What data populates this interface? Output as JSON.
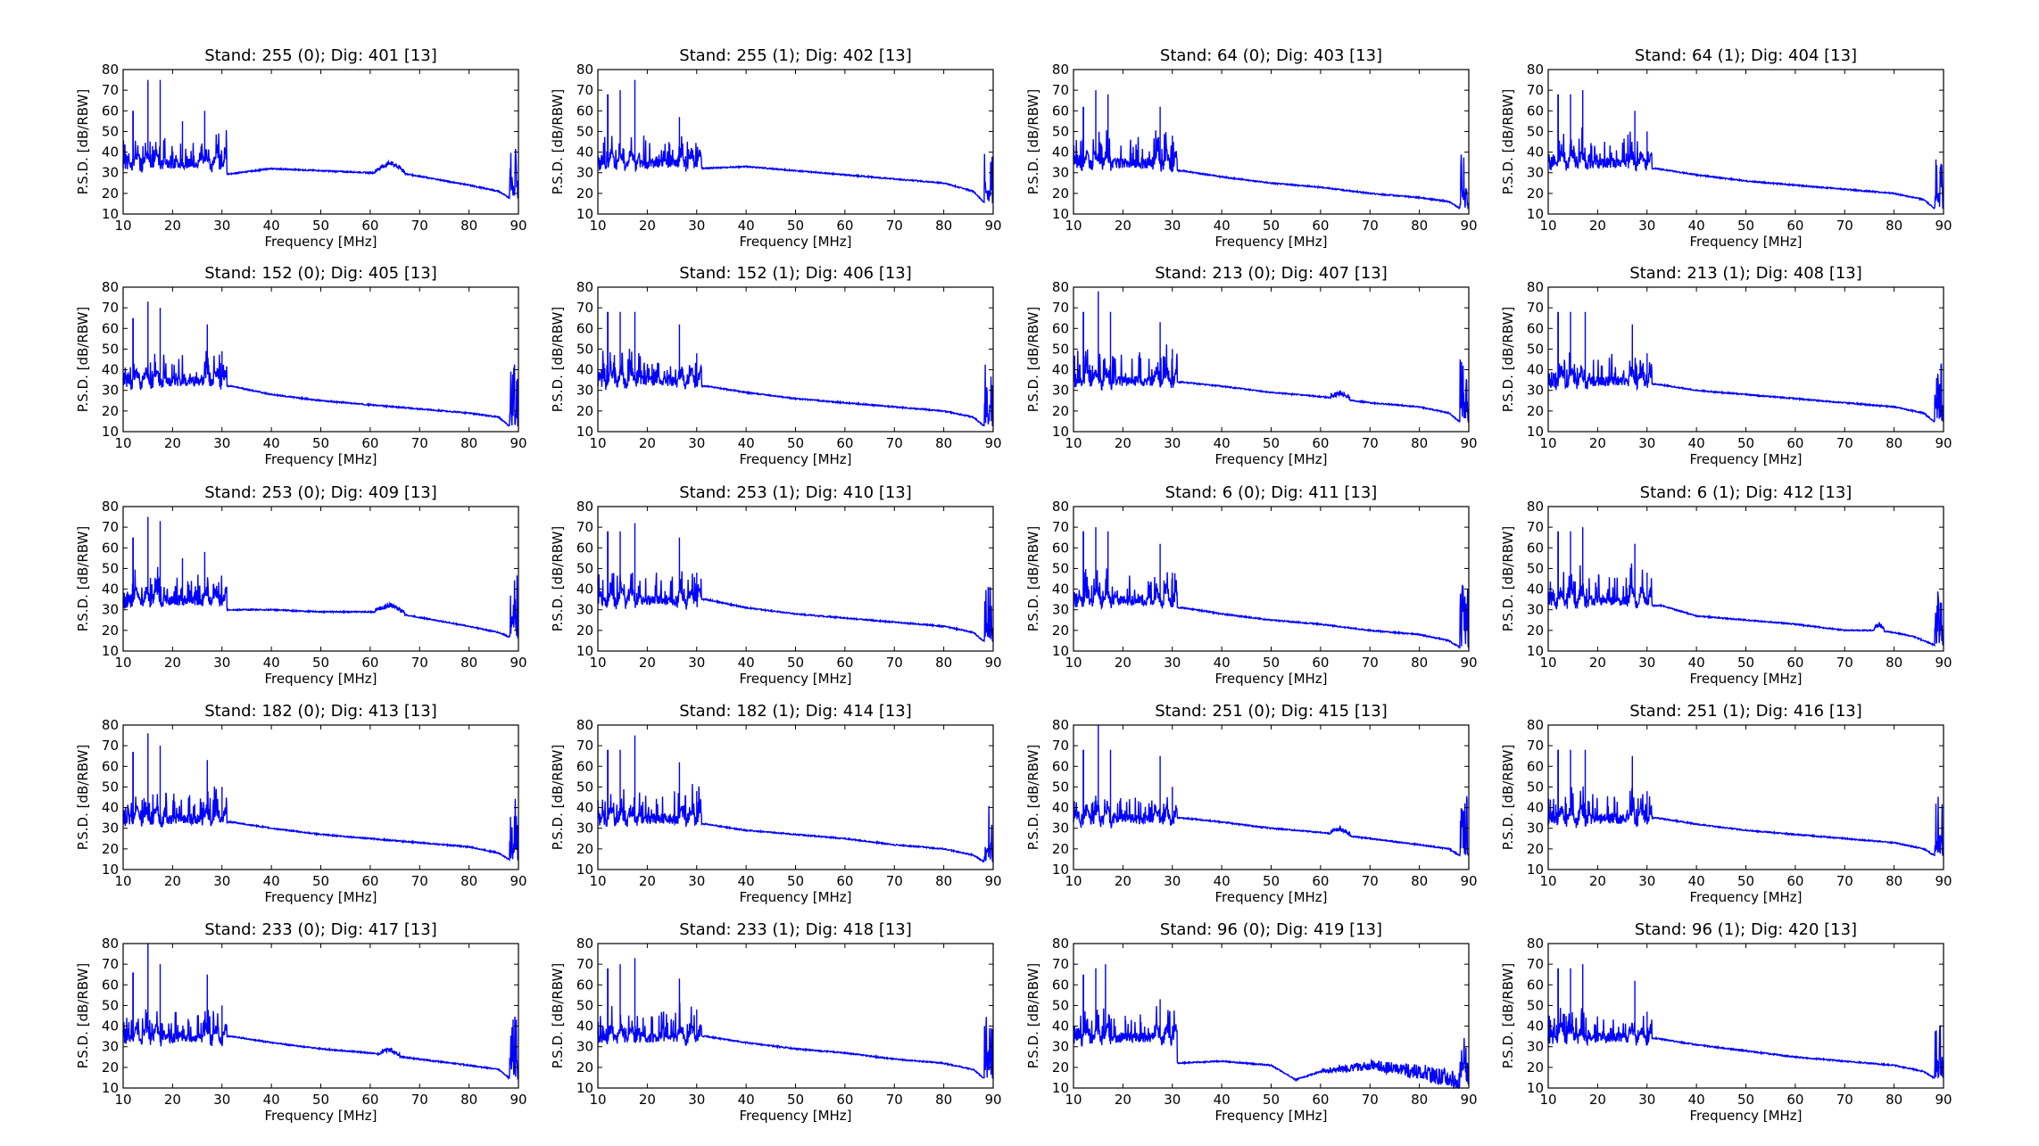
{
  "figure": {
    "rows": 5,
    "cols": 4,
    "xlabel": "Frequency [MHz]",
    "ylabel": "P.S.D. [dB/RBW]",
    "xlim": [
      10,
      90
    ],
    "ylim": [
      10,
      80
    ],
    "xticks": [
      "10",
      "20",
      "30",
      "40",
      "50",
      "60",
      "70",
      "80",
      "90"
    ],
    "yticks": [
      "10",
      "20",
      "30",
      "40",
      "50",
      "60",
      "70",
      "80"
    ],
    "line_color": "#0000ff"
  },
  "chart_data": [
    {
      "type": "line",
      "title": "Stand: 255 (0); Dig: 401 [13]",
      "baseline": "mid",
      "mid": [
        [
          30,
          29
        ],
        [
          40,
          32
        ],
        [
          50,
          31
        ],
        [
          60,
          30
        ],
        [
          66,
          30
        ],
        [
          80,
          24
        ],
        [
          86,
          21
        ],
        [
          88,
          18
        ]
      ],
      "hump": {
        "center": 64,
        "width": 3,
        "height": 4
      },
      "peaks": [
        [
          12,
          60
        ],
        [
          15,
          75
        ],
        [
          17.5,
          75
        ],
        [
          22,
          55
        ],
        [
          26.5,
          60
        ]
      ],
      "edge": 47,
      "xlim": [
        10,
        90
      ],
      "ylim": [
        10,
        80
      ]
    },
    {
      "type": "line",
      "title": "Stand: 255 (1); Dig: 402 [13]",
      "baseline": "mid",
      "mid": [
        [
          30,
          32
        ],
        [
          40,
          33
        ],
        [
          50,
          31
        ],
        [
          60,
          29
        ],
        [
          70,
          27
        ],
        [
          80,
          25
        ],
        [
          86,
          21
        ],
        [
          88,
          16
        ]
      ],
      "peaks": [
        [
          12,
          68
        ],
        [
          14.5,
          70
        ],
        [
          17.5,
          75
        ],
        [
          26.5,
          57
        ]
      ],
      "edge": 44,
      "xlim": [
        10,
        90
      ],
      "ylim": [
        10,
        80
      ]
    },
    {
      "type": "line",
      "title": "Stand: 64 (0); Dig: 403 [13]",
      "baseline": "mid",
      "mid": [
        [
          32,
          31
        ],
        [
          40,
          28
        ],
        [
          50,
          25
        ],
        [
          60,
          23
        ],
        [
          70,
          20
        ],
        [
          80,
          18
        ],
        [
          86,
          16
        ],
        [
          88,
          13
        ]
      ],
      "peaks": [
        [
          12,
          62
        ],
        [
          14.5,
          70
        ],
        [
          17,
          68
        ],
        [
          27.5,
          62
        ],
        [
          30,
          48
        ]
      ],
      "edge": 41,
      "xlim": [
        10,
        90
      ],
      "ylim": [
        10,
        80
      ]
    },
    {
      "type": "line",
      "title": "Stand: 64 (1); Dig: 404 [13]",
      "baseline": "mid",
      "mid": [
        [
          32,
          32
        ],
        [
          40,
          29
        ],
        [
          50,
          26
        ],
        [
          60,
          24
        ],
        [
          70,
          22
        ],
        [
          80,
          20
        ],
        [
          86,
          17
        ],
        [
          88,
          13
        ]
      ],
      "peaks": [
        [
          12,
          68
        ],
        [
          14.5,
          68
        ],
        [
          17,
          70
        ],
        [
          27.5,
          60
        ],
        [
          30,
          50
        ]
      ],
      "edge": 39,
      "xlim": [
        10,
        90
      ],
      "ylim": [
        10,
        80
      ]
    },
    {
      "type": "line",
      "title": "Stand: 152 (0); Dig: 405 [13]",
      "baseline": "mid",
      "mid": [
        [
          32,
          32
        ],
        [
          40,
          28
        ],
        [
          50,
          25
        ],
        [
          60,
          23
        ],
        [
          70,
          21
        ],
        [
          80,
          19
        ],
        [
          86,
          17
        ],
        [
          88,
          13
        ]
      ],
      "peaks": [
        [
          12,
          65
        ],
        [
          15,
          73
        ],
        [
          17.5,
          70
        ],
        [
          27,
          62
        ],
        [
          30,
          49
        ]
      ],
      "edge": 43,
      "xlim": [
        10,
        90
      ],
      "ylim": [
        10,
        80
      ]
    },
    {
      "type": "line",
      "title": "Stand: 152 (1); Dig: 406 [13]",
      "baseline": "mid",
      "mid": [
        [
          32,
          32
        ],
        [
          40,
          29
        ],
        [
          50,
          26
        ],
        [
          60,
          24
        ],
        [
          70,
          22
        ],
        [
          80,
          20
        ],
        [
          86,
          17
        ],
        [
          88,
          13
        ]
      ],
      "peaks": [
        [
          12,
          68
        ],
        [
          14.5,
          68
        ],
        [
          17.5,
          68
        ],
        [
          26.5,
          62
        ],
        [
          30,
          48
        ]
      ],
      "edge": 45,
      "xlim": [
        10,
        90
      ],
      "ylim": [
        10,
        80
      ]
    },
    {
      "type": "line",
      "title": "Stand: 213 (0); Dig: 407 [13]",
      "baseline": "mid",
      "mid": [
        [
          32,
          34
        ],
        [
          40,
          32
        ],
        [
          50,
          29
        ],
        [
          60,
          27
        ],
        [
          70,
          24
        ],
        [
          80,
          22
        ],
        [
          86,
          19
        ],
        [
          88,
          15
        ]
      ],
      "hump": {
        "center": 64,
        "width": 2,
        "height": 2
      },
      "peaks": [
        [
          12,
          68
        ],
        [
          15,
          78
        ],
        [
          17.5,
          68
        ],
        [
          27.5,
          63
        ],
        [
          30,
          50
        ]
      ],
      "edge": 45,
      "xlim": [
        10,
        90
      ],
      "ylim": [
        10,
        80
      ]
    },
    {
      "type": "line",
      "title": "Stand: 213 (1); Dig: 408 [13]",
      "baseline": "mid",
      "mid": [
        [
          32,
          33
        ],
        [
          40,
          30
        ],
        [
          50,
          28
        ],
        [
          60,
          26
        ],
        [
          70,
          24
        ],
        [
          80,
          22
        ],
        [
          86,
          19
        ],
        [
          88,
          15
        ]
      ],
      "peaks": [
        [
          12,
          68
        ],
        [
          14.5,
          68
        ],
        [
          17.5,
          68
        ],
        [
          27,
          62
        ],
        [
          30,
          48
        ]
      ],
      "edge": 43,
      "xlim": [
        10,
        90
      ],
      "ylim": [
        10,
        80
      ]
    },
    {
      "type": "line",
      "title": "Stand: 253 (0); Dig: 409 [13]",
      "baseline": "mid",
      "mid": [
        [
          30,
          30
        ],
        [
          40,
          30
        ],
        [
          50,
          29
        ],
        [
          60,
          29
        ],
        [
          66,
          28
        ],
        [
          80,
          22
        ],
        [
          86,
          19
        ],
        [
          88,
          17
        ]
      ],
      "hump": {
        "center": 64,
        "width": 3,
        "height": 3
      },
      "peaks": [
        [
          12,
          65
        ],
        [
          15,
          75
        ],
        [
          17.5,
          73
        ],
        [
          22,
          55
        ],
        [
          26.5,
          58
        ]
      ],
      "edge": 47,
      "xlim": [
        10,
        90
      ],
      "ylim": [
        10,
        80
      ]
    },
    {
      "type": "line",
      "title": "Stand: 253 (1); Dig: 410 [13]",
      "baseline": "mid",
      "mid": [
        [
          32,
          35
        ],
        [
          40,
          31
        ],
        [
          50,
          28
        ],
        [
          60,
          26
        ],
        [
          70,
          24
        ],
        [
          80,
          22
        ],
        [
          86,
          19
        ],
        [
          88,
          15
        ]
      ],
      "peaks": [
        [
          12,
          68
        ],
        [
          14.5,
          68
        ],
        [
          17.5,
          72
        ],
        [
          26.5,
          65
        ],
        [
          30,
          48
        ]
      ],
      "edge": 43,
      "xlim": [
        10,
        90
      ],
      "ylim": [
        10,
        80
      ]
    },
    {
      "type": "line",
      "title": "Stand: 6 (0); Dig: 411 [13]",
      "baseline": "mid",
      "mid": [
        [
          32,
          31
        ],
        [
          40,
          28
        ],
        [
          50,
          25
        ],
        [
          60,
          23
        ],
        [
          70,
          20
        ],
        [
          80,
          18
        ],
        [
          86,
          15
        ],
        [
          88,
          12
        ]
      ],
      "peaks": [
        [
          12,
          68
        ],
        [
          14.5,
          70
        ],
        [
          17,
          68
        ],
        [
          27.5,
          62
        ],
        [
          30,
          48
        ]
      ],
      "edge": 44,
      "xlim": [
        10,
        90
      ],
      "ylim": [
        10,
        80
      ]
    },
    {
      "type": "line",
      "title": "Stand: 6 (1); Dig: 412 [13]",
      "baseline": "mid",
      "mid": [
        [
          33,
          32
        ],
        [
          40,
          27
        ],
        [
          50,
          25
        ],
        [
          60,
          23
        ],
        [
          70,
          20
        ],
        [
          77,
          20
        ],
        [
          80,
          19
        ],
        [
          84,
          17
        ],
        [
          86,
          15
        ],
        [
          88,
          13
        ]
      ],
      "hump": {
        "center": 77,
        "width": 1,
        "height": 2
      },
      "peaks": [
        [
          12,
          68
        ],
        [
          14.5,
          68
        ],
        [
          17,
          70
        ],
        [
          27.5,
          62
        ],
        [
          30,
          48
        ]
      ],
      "edge": 40,
      "xlim": [
        10,
        90
      ],
      "ylim": [
        10,
        80
      ]
    },
    {
      "type": "line",
      "title": "Stand: 182 (0); Dig: 413 [13]",
      "baseline": "mid",
      "mid": [
        [
          32,
          33
        ],
        [
          40,
          30
        ],
        [
          50,
          27
        ],
        [
          60,
          25
        ],
        [
          70,
          23
        ],
        [
          80,
          21
        ],
        [
          86,
          18
        ],
        [
          88,
          15
        ]
      ],
      "peaks": [
        [
          12,
          67
        ],
        [
          15,
          76
        ],
        [
          17.5,
          70
        ],
        [
          27,
          63
        ],
        [
          30,
          50
        ]
      ],
      "edge": 46,
      "xlim": [
        10,
        90
      ],
      "ylim": [
        10,
        80
      ]
    },
    {
      "type": "line",
      "title": "Stand: 182 (1); Dig: 414 [13]",
      "baseline": "mid",
      "mid": [
        [
          32,
          32
        ],
        [
          40,
          29
        ],
        [
          50,
          27
        ],
        [
          60,
          25
        ],
        [
          70,
          22
        ],
        [
          80,
          20
        ],
        [
          86,
          17
        ],
        [
          88,
          14
        ]
      ],
      "peaks": [
        [
          12,
          68
        ],
        [
          14.5,
          68
        ],
        [
          17.5,
          75
        ],
        [
          26.5,
          62
        ],
        [
          30,
          48
        ]
      ],
      "edge": 45,
      "xlim": [
        10,
        90
      ],
      "ylim": [
        10,
        80
      ]
    },
    {
      "type": "line",
      "title": "Stand: 251 (0); Dig: 415 [13]",
      "baseline": "mid",
      "mid": [
        [
          32,
          35
        ],
        [
          40,
          33
        ],
        [
          50,
          30
        ],
        [
          60,
          28
        ],
        [
          70,
          25
        ],
        [
          80,
          22
        ],
        [
          86,
          20
        ],
        [
          88,
          17
        ]
      ],
      "hump": {
        "center": 64,
        "width": 2,
        "height": 2
      },
      "peaks": [
        [
          12,
          68
        ],
        [
          15,
          80
        ],
        [
          17.5,
          68
        ],
        [
          27.5,
          65
        ],
        [
          30,
          50
        ]
      ],
      "edge": 47,
      "xlim": [
        10,
        90
      ],
      "ylim": [
        10,
        80
      ]
    },
    {
      "type": "line",
      "title": "Stand: 251 (1); Dig: 416 [13]",
      "baseline": "mid",
      "mid": [
        [
          32,
          35
        ],
        [
          40,
          32
        ],
        [
          50,
          29
        ],
        [
          60,
          27
        ],
        [
          70,
          25
        ],
        [
          80,
          23
        ],
        [
          86,
          20
        ],
        [
          88,
          17
        ]
      ],
      "peaks": [
        [
          12,
          68
        ],
        [
          14.5,
          68
        ],
        [
          17.5,
          68
        ],
        [
          27,
          65
        ],
        [
          30,
          48
        ]
      ],
      "edge": 46,
      "xlim": [
        10,
        90
      ],
      "ylim": [
        10,
        80
      ]
    },
    {
      "type": "line",
      "title": "Stand: 233 (0); Dig: 417 [13]",
      "baseline": "mid",
      "mid": [
        [
          32,
          35
        ],
        [
          40,
          32
        ],
        [
          50,
          29
        ],
        [
          60,
          27
        ],
        [
          70,
          24
        ],
        [
          80,
          21
        ],
        [
          86,
          19
        ],
        [
          88,
          15
        ]
      ],
      "hump": {
        "center": 64,
        "width": 2,
        "height": 2
      },
      "peaks": [
        [
          12,
          66
        ],
        [
          15,
          80
        ],
        [
          17.5,
          70
        ],
        [
          27,
          65
        ],
        [
          30,
          50
        ]
      ],
      "edge": 45,
      "xlim": [
        10,
        90
      ],
      "ylim": [
        10,
        80
      ]
    },
    {
      "type": "line",
      "title": "Stand: 233 (1); Dig: 418 [13]",
      "baseline": "mid",
      "mid": [
        [
          32,
          35
        ],
        [
          40,
          32
        ],
        [
          50,
          29
        ],
        [
          60,
          27
        ],
        [
          70,
          24
        ],
        [
          80,
          22
        ],
        [
          86,
          19
        ],
        [
          88,
          15
        ]
      ],
      "peaks": [
        [
          12,
          68
        ],
        [
          14.5,
          70
        ],
        [
          17.5,
          73
        ],
        [
          26.5,
          63
        ],
        [
          30,
          48
        ]
      ],
      "edge": 45,
      "xlim": [
        10,
        90
      ],
      "ylim": [
        10,
        80
      ]
    },
    {
      "type": "line",
      "title": "Stand: 96 (0); Dig: 419 [13]",
      "baseline": "mid",
      "mid": [
        [
          30,
          22
        ],
        [
          40,
          23
        ],
        [
          50,
          21
        ],
        [
          55,
          14
        ],
        [
          60,
          18
        ],
        [
          70,
          21
        ],
        [
          80,
          18
        ],
        [
          85,
          15
        ],
        [
          89,
          12
        ]
      ],
      "band": {
        "from": 60,
        "to": 89,
        "amp": 5
      },
      "peaks": [
        [
          12,
          65
        ],
        [
          14.5,
          68
        ],
        [
          16.5,
          70
        ],
        [
          20.5,
          45
        ],
        [
          27.5,
          53
        ]
      ],
      "edge": 38,
      "xlim": [
        10,
        90
      ],
      "ylim": [
        10,
        80
      ]
    },
    {
      "type": "line",
      "title": "Stand: 96 (1); Dig: 420 [13]",
      "baseline": "mid",
      "mid": [
        [
          32,
          34
        ],
        [
          40,
          31
        ],
        [
          50,
          28
        ],
        [
          60,
          25
        ],
        [
          70,
          23
        ],
        [
          80,
          21
        ],
        [
          86,
          18
        ],
        [
          88,
          15
        ]
      ],
      "peaks": [
        [
          12,
          68
        ],
        [
          14.5,
          68
        ],
        [
          17,
          70
        ],
        [
          27.5,
          62
        ],
        [
          30,
          47
        ]
      ],
      "edge": 41,
      "xlim": [
        10,
        90
      ],
      "ylim": [
        10,
        80
      ]
    }
  ]
}
